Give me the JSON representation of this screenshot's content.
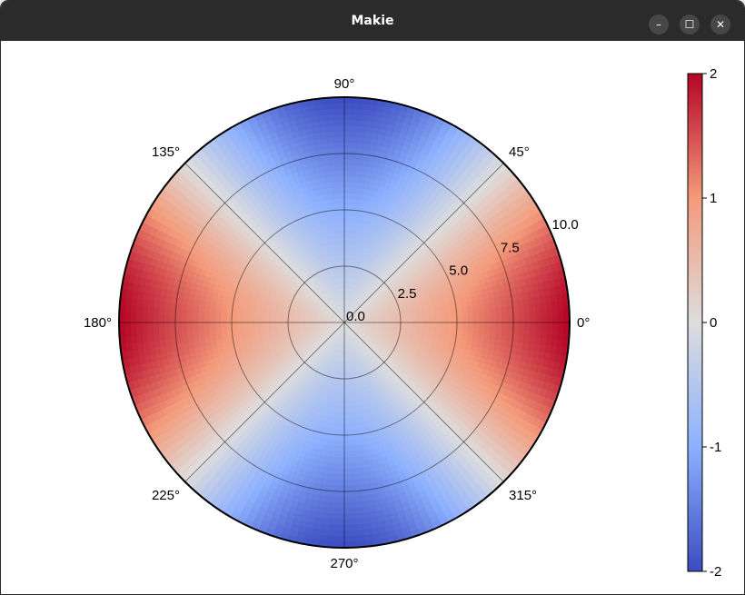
{
  "window": {
    "title": "Makie",
    "minimize_label": "–",
    "maximize_label": "☐",
    "close_label": "✕"
  },
  "chart_data": {
    "type": "heatmap",
    "projection": "polar",
    "function": "value = 2 * cos(2 * theta) * r / 10",
    "r_range": [
      0,
      10
    ],
    "r_ticks": [
      "0.0",
      "2.5",
      "5.0",
      "7.5",
      "10.0"
    ],
    "r_tick_values": [
      0,
      2.5,
      5,
      7.5,
      10
    ],
    "theta_ticks": [
      "0°",
      "45°",
      "90°",
      "135°",
      "180°",
      "225°",
      "270°",
      "315°"
    ],
    "theta_tick_values": [
      0,
      45,
      90,
      135,
      180,
      225,
      270,
      315
    ],
    "colormap": "balance-blue-white-red",
    "colormap_stops": [
      "#3b4cc0",
      "#8db0fe",
      "#dddddd",
      "#f49a7b",
      "#b40426"
    ],
    "colorbar": {
      "range": [
        -2,
        2
      ],
      "ticks": [
        "2",
        "1",
        "0",
        "-1",
        "-2"
      ],
      "tick_values": [
        2,
        1,
        0,
        -1,
        -2
      ]
    },
    "grid": true
  }
}
